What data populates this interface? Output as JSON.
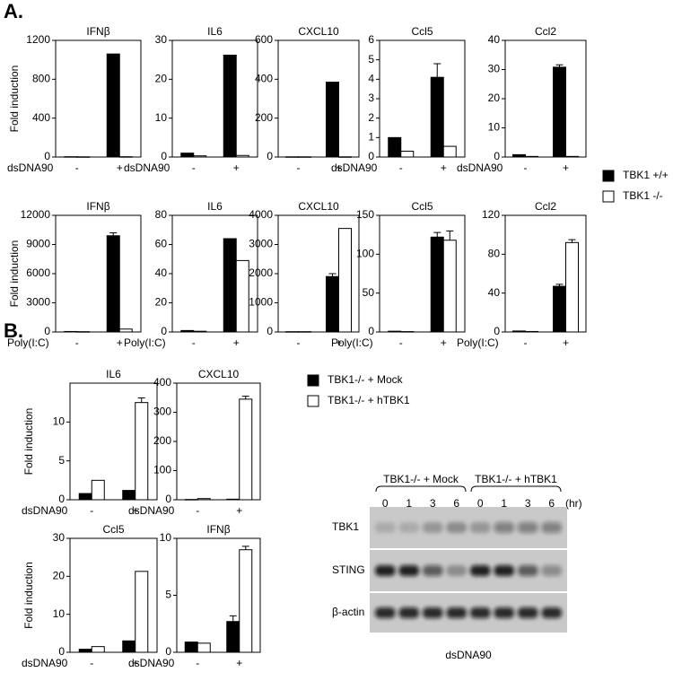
{
  "panel_labels": [
    "A.",
    "B."
  ],
  "chart_data": [
    {
      "type": "bar",
      "title": "IFNβ",
      "ylabel": "Fold induction",
      "xlabel": "dsDNA90",
      "categories": [
        "-",
        "+"
      ],
      "ylim": [
        0,
        1200
      ],
      "yticks": [
        0,
        400,
        800,
        1200
      ],
      "series": [
        {
          "name": "TBK1 +/+",
          "color": "#000000",
          "values": [
            3,
            1060
          ]
        },
        {
          "name": "TBK1 -/-",
          "color": "#ffffff",
          "values": [
            2,
            3
          ]
        }
      ]
    },
    {
      "type": "bar",
      "title": "IL6",
      "xlabel": "dsDNA90",
      "categories": [
        "-",
        "+"
      ],
      "ylim": [
        0,
        30
      ],
      "yticks": [
        0,
        10,
        20,
        30
      ],
      "series": [
        {
          "color": "#000000",
          "values": [
            1,
            26.2
          ]
        },
        {
          "color": "#ffffff",
          "values": [
            0.3,
            0.4
          ]
        }
      ]
    },
    {
      "type": "bar",
      "title": "CXCL10",
      "categories": [
        "-",
        "+"
      ],
      "ylim": [
        0,
        600
      ],
      "yticks": [
        0,
        200,
        400,
        600
      ],
      "series": [
        {
          "color": "#000000",
          "values": [
            1,
            385
          ]
        },
        {
          "color": "#ffffff",
          "values": [
            1,
            1
          ]
        }
      ]
    },
    {
      "type": "bar",
      "title": "Ccl5",
      "xlabel": "dsDNA90",
      "categories": [
        "-",
        "+"
      ],
      "ylim": [
        0,
        6
      ],
      "yticks": [
        0,
        1,
        2,
        3,
        4,
        5,
        6
      ],
      "series": [
        {
          "color": "#000000",
          "values": [
            1,
            4.1
          ],
          "errors": [
            null,
            0.7
          ]
        },
        {
          "color": "#ffffff",
          "values": [
            0.3,
            0.55
          ]
        }
      ]
    },
    {
      "type": "bar",
      "title": "Ccl2",
      "xlabel": "dsDNA90",
      "categories": [
        "-",
        "+"
      ],
      "ylim": [
        0,
        40
      ],
      "yticks": [
        0,
        10,
        20,
        30,
        40
      ],
      "series": [
        {
          "color": "#000000",
          "values": [
            0.8,
            30.8
          ],
          "errors": [
            null,
            0.8
          ]
        },
        {
          "color": "#ffffff",
          "values": [
            0.2,
            0.2
          ]
        }
      ]
    },
    {
      "type": "bar",
      "title": "IFNβ",
      "ylabel": "Fold induction",
      "xlabel": "Poly(I:C)",
      "categories": [
        "-",
        "+"
      ],
      "ylim": [
        0,
        12000
      ],
      "yticks": [
        0,
        3000,
        6000,
        9000,
        12000
      ],
      "series": [
        {
          "color": "#000000",
          "values": [
            50,
            9900
          ],
          "errors": [
            null,
            300
          ]
        },
        {
          "color": "#ffffff",
          "values": [
            30,
            300
          ]
        }
      ]
    },
    {
      "type": "bar",
      "title": "IL6",
      "xlabel": "Poly(I:C)",
      "categories": [
        "-",
        "+"
      ],
      "ylim": [
        0,
        80
      ],
      "yticks": [
        0,
        20,
        40,
        60,
        80
      ],
      "series": [
        {
          "color": "#000000",
          "values": [
            1,
            64
          ]
        },
        {
          "color": "#ffffff",
          "values": [
            0.5,
            49
          ]
        }
      ]
    },
    {
      "type": "bar",
      "title": "CXCL10",
      "categories": [
        "-",
        "+"
      ],
      "ylim": [
        0,
        4000
      ],
      "yticks": [
        0,
        1000,
        2000,
        3000,
        4000
      ],
      "series": [
        {
          "color": "#000000",
          "values": [
            10,
            1900
          ],
          "errors": [
            null,
            100
          ]
        },
        {
          "color": "#ffffff",
          "values": [
            10,
            3550
          ]
        }
      ]
    },
    {
      "type": "bar",
      "title": "Ccl5",
      "xlabel": "Poly(I:C)",
      "categories": [
        "-",
        "+"
      ],
      "ylim": [
        0,
        150
      ],
      "yticks": [
        0,
        50,
        100,
        150
      ],
      "series": [
        {
          "color": "#000000",
          "values": [
            1,
            122
          ],
          "errors": [
            null,
            6
          ]
        },
        {
          "color": "#ffffff",
          "values": [
            0.5,
            118
          ],
          "errors": [
            null,
            12
          ]
        }
      ]
    },
    {
      "type": "bar",
      "title": "Ccl2",
      "xlabel": "Poly(I:C)",
      "categories": [
        "-",
        "+"
      ],
      "ylim": [
        0,
        120
      ],
      "yticks": [
        0,
        40,
        80,
        120
      ],
      "series": [
        {
          "color": "#000000",
          "values": [
            1,
            47
          ],
          "errors": [
            null,
            2
          ]
        },
        {
          "color": "#ffffff",
          "values": [
            0.5,
            92
          ],
          "errors": [
            null,
            3
          ]
        }
      ]
    },
    {
      "type": "bar",
      "title": "IL6",
      "ylabel": "Fold induction",
      "xlabel": "dsDNA90",
      "categories": [
        "-",
        "+"
      ],
      "ylim": [
        0,
        15
      ],
      "yticks": [
        0,
        5,
        10
      ],
      "series": [
        {
          "name": "TBK1-/- + Mock",
          "color": "#000000",
          "values": [
            0.8,
            1.2
          ]
        },
        {
          "name": "TBK1-/- + hTBK1",
          "color": "#ffffff",
          "values": [
            2.5,
            12.5
          ],
          "errors": [
            null,
            0.6
          ]
        }
      ]
    },
    {
      "type": "bar",
      "title": "CXCL10",
      "xlabel": "dsDNA90",
      "categories": [
        "-",
        "+"
      ],
      "ylim": [
        0,
        400
      ],
      "yticks": [
        0,
        100,
        200,
        300,
        400
      ],
      "series": [
        {
          "color": "#000000",
          "values": [
            1,
            2
          ]
        },
        {
          "color": "#ffffff",
          "values": [
            4,
            345
          ],
          "errors": [
            null,
            10
          ]
        }
      ]
    },
    {
      "type": "bar",
      "title": "Ccl5",
      "ylabel": "Fold induction",
      "xlabel": "dsDNA90",
      "categories": [
        "-",
        "+"
      ],
      "ylim": [
        0,
        30
      ],
      "yticks": [
        0,
        10,
        20,
        30
      ],
      "series": [
        {
          "color": "#000000",
          "values": [
            0.8,
            3
          ]
        },
        {
          "color": "#ffffff",
          "values": [
            1.5,
            21.3
          ]
        }
      ]
    },
    {
      "type": "bar",
      "title": "IFNβ",
      "xlabel": "dsDNA90",
      "categories": [
        "-",
        "+"
      ],
      "ylim": [
        0,
        10
      ],
      "yticks": [
        0,
        5,
        10
      ],
      "series": [
        {
          "color": "#000000",
          "values": [
            0.9,
            2.7
          ],
          "errors": [
            null,
            0.5
          ]
        },
        {
          "color": "#ffffff",
          "values": [
            0.8,
            9
          ],
          "errors": [
            null,
            0.3
          ]
        }
      ]
    }
  ],
  "blot": {
    "groups": [
      "TBK1-/- + Mock",
      "TBK1-/- + hTBK1"
    ],
    "timepoints": [
      "0",
      "1",
      "3",
      "6",
      "0",
      "1",
      "3",
      "6"
    ],
    "unit": "(hr)",
    "rows": [
      "TBK1",
      "STING",
      "β-actin"
    ],
    "xlabel": "dsDNA90"
  }
}
